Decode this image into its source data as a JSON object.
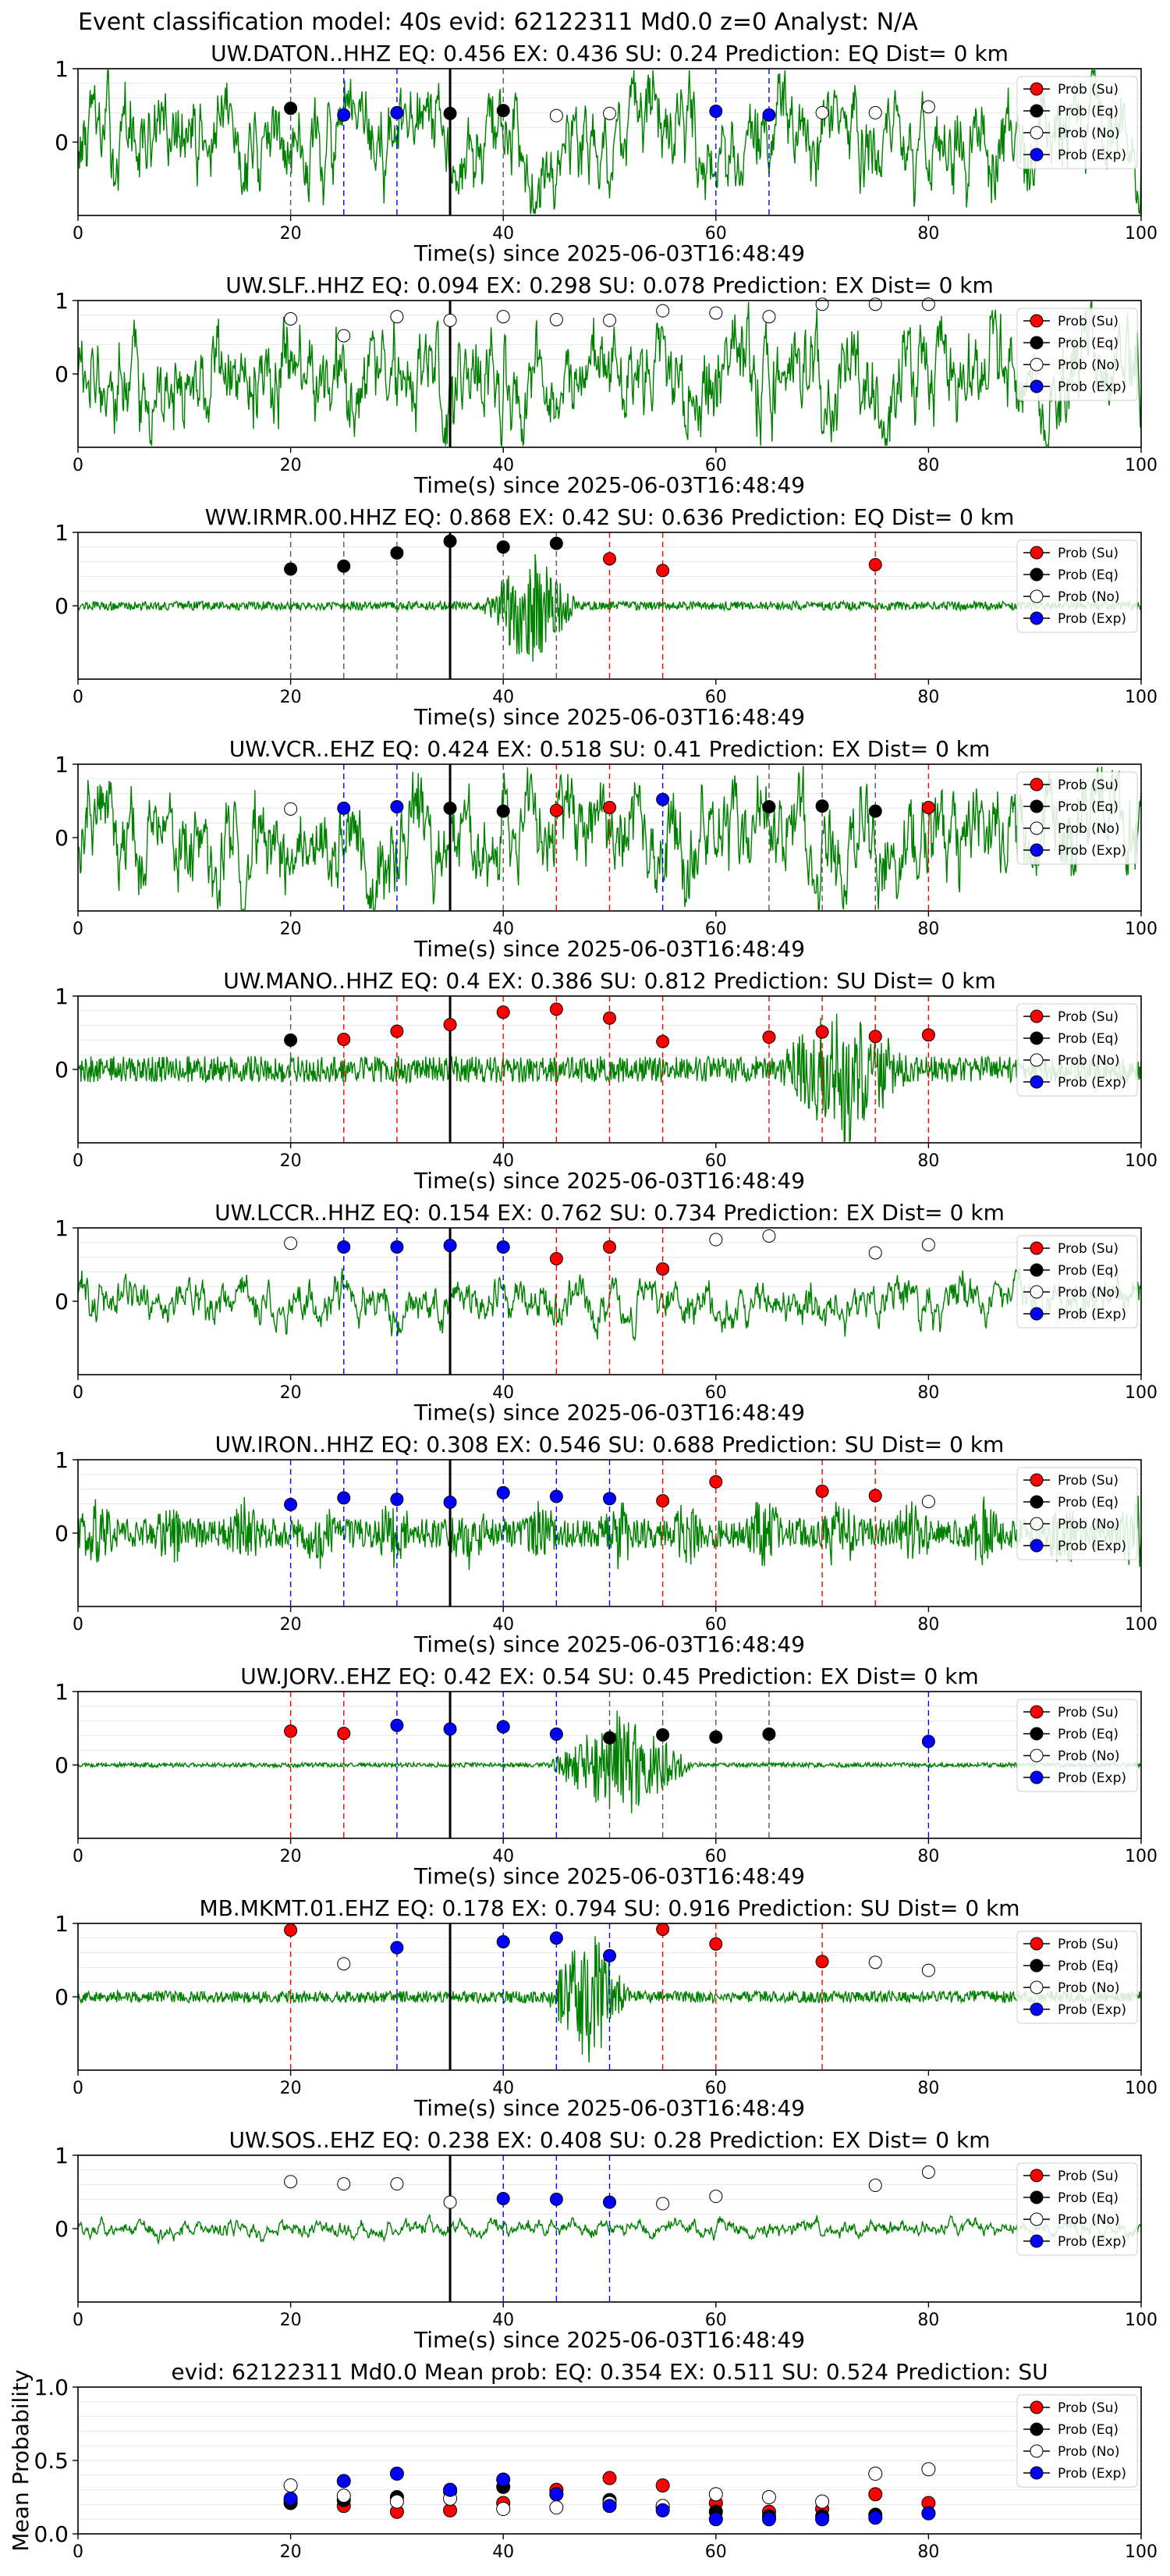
{
  "title": "Event classification model: 40s evid: 62122311 Md0.0 z=0 Analyst: N/A",
  "legend_labels": [
    "Prob (Su)",
    "Prob (Eq)",
    "Prob (No)",
    "Prob (Exp)"
  ],
  "colors": {
    "trace": "#008000",
    "su": "#ff0000",
    "eq": "#000000",
    "no": "#ffffff",
    "exp": "#0000ff",
    "axis": "#000000",
    "grid": "#e6e6e6"
  },
  "chart_data": [
    {
      "type": "line",
      "title": "UW.DATON..HHZ   EQ: 0.456  EX: 0.436  SU: 0.24   Prediction: EQ    Dist= 0 km",
      "xlabel": "Time(s) since 2025-06-03T16:48:49",
      "xlim": [
        0,
        100
      ],
      "ylim": [
        -1,
        1
      ],
      "xticks": [
        "0",
        "20",
        "40",
        "60",
        "80",
        "100"
      ],
      "yticks": [
        "0",
        "1"
      ],
      "pick_time": 35,
      "trace_amp": 0.75,
      "trace_shape": "noisy",
      "points": [
        {
          "x": 20,
          "y": 0.46,
          "cls": "eq"
        },
        {
          "x": 25,
          "y": 0.37,
          "cls": "exp"
        },
        {
          "x": 30,
          "y": 0.4,
          "cls": "exp"
        },
        {
          "x": 35,
          "y": 0.39,
          "cls": "eq"
        },
        {
          "x": 40,
          "y": 0.43,
          "cls": "eq"
        },
        {
          "x": 45,
          "y": 0.36,
          "cls": "no"
        },
        {
          "x": 50,
          "y": 0.39,
          "cls": "no"
        },
        {
          "x": 60,
          "y": 0.42,
          "cls": "exp"
        },
        {
          "x": 65,
          "y": 0.37,
          "cls": "exp"
        },
        {
          "x": 70,
          "y": 0.4,
          "cls": "no"
        },
        {
          "x": 75,
          "y": 0.4,
          "cls": "no"
        },
        {
          "x": 80,
          "y": 0.48,
          "cls": "no"
        }
      ]
    },
    {
      "type": "line",
      "title": "UW.SLF..HHZ   EQ: 0.094  EX: 0.298  SU: 0.078   Prediction: EX    Dist= 0 km",
      "xlabel": "Time(s) since 2025-06-03T16:48:49",
      "xlim": [
        0,
        100
      ],
      "ylim": [
        -1,
        1
      ],
      "xticks": [
        "0",
        "20",
        "40",
        "60",
        "80",
        "100"
      ],
      "yticks": [
        "0",
        "1"
      ],
      "pick_time": 35,
      "trace_amp": 0.8,
      "trace_shape": "noisy",
      "points": [
        {
          "x": 20,
          "y": 0.75,
          "cls": "no"
        },
        {
          "x": 25,
          "y": 0.52,
          "cls": "no"
        },
        {
          "x": 30,
          "y": 0.78,
          "cls": "no"
        },
        {
          "x": 35,
          "y": 0.73,
          "cls": "no"
        },
        {
          "x": 40,
          "y": 0.78,
          "cls": "no"
        },
        {
          "x": 45,
          "y": 0.74,
          "cls": "no"
        },
        {
          "x": 50,
          "y": 0.73,
          "cls": "no"
        },
        {
          "x": 55,
          "y": 0.86,
          "cls": "no"
        },
        {
          "x": 60,
          "y": 0.83,
          "cls": "no"
        },
        {
          "x": 65,
          "y": 0.78,
          "cls": "no"
        },
        {
          "x": 70,
          "y": 0.95,
          "cls": "no"
        },
        {
          "x": 75,
          "y": 0.95,
          "cls": "no"
        },
        {
          "x": 80,
          "y": 0.95,
          "cls": "no"
        }
      ]
    },
    {
      "type": "line",
      "title": "WW.IRMR.00.HHZ   EQ: 0.868  EX: 0.42  SU: 0.636   Prediction: EQ    Dist= 0 km",
      "xlabel": "Time(s) since 2025-06-03T16:48:49",
      "xlim": [
        0,
        100
      ],
      "ylim": [
        -1,
        1
      ],
      "xticks": [
        "0",
        "20",
        "40",
        "60",
        "80",
        "100"
      ],
      "yticks": [
        "0",
        "1"
      ],
      "pick_time": 35,
      "trace_amp": 0.06,
      "trace_shape": "burst",
      "burst": [
        38,
        47,
        0.85
      ],
      "points": [
        {
          "x": 20,
          "y": 0.5,
          "cls": "eq"
        },
        {
          "x": 25,
          "y": 0.54,
          "cls": "eq"
        },
        {
          "x": 30,
          "y": 0.72,
          "cls": "eq"
        },
        {
          "x": 35,
          "y": 0.88,
          "cls": "eq"
        },
        {
          "x": 40,
          "y": 0.8,
          "cls": "eq"
        },
        {
          "x": 45,
          "y": 0.85,
          "cls": "eq"
        },
        {
          "x": 50,
          "y": 0.64,
          "cls": "su"
        },
        {
          "x": 55,
          "y": 0.48,
          "cls": "su"
        },
        {
          "x": 75,
          "y": 0.56,
          "cls": "su"
        }
      ]
    },
    {
      "type": "line",
      "title": "UW.VCR..EHZ   EQ: 0.424  EX: 0.518  SU: 0.41   Prediction: EX    Dist= 0 km",
      "xlabel": "Time(s) since 2025-06-03T16:48:49",
      "xlim": [
        0,
        100
      ],
      "ylim": [
        -1,
        1
      ],
      "xticks": [
        "0",
        "20",
        "40",
        "60",
        "80",
        "100"
      ],
      "yticks": [
        "0",
        "1"
      ],
      "pick_time": 35,
      "trace_amp": 0.8,
      "trace_shape": "noisy",
      "points": [
        {
          "x": 20,
          "y": 0.39,
          "cls": "no"
        },
        {
          "x": 25,
          "y": 0.4,
          "cls": "exp"
        },
        {
          "x": 30,
          "y": 0.42,
          "cls": "exp"
        },
        {
          "x": 35,
          "y": 0.4,
          "cls": "eq"
        },
        {
          "x": 40,
          "y": 0.36,
          "cls": "eq"
        },
        {
          "x": 45,
          "y": 0.37,
          "cls": "su"
        },
        {
          "x": 50,
          "y": 0.41,
          "cls": "su"
        },
        {
          "x": 55,
          "y": 0.52,
          "cls": "exp"
        },
        {
          "x": 65,
          "y": 0.42,
          "cls": "eq"
        },
        {
          "x": 70,
          "y": 0.43,
          "cls": "eq"
        },
        {
          "x": 75,
          "y": 0.36,
          "cls": "eq"
        },
        {
          "x": 80,
          "y": 0.41,
          "cls": "su"
        }
      ]
    },
    {
      "type": "line",
      "title": "UW.MANO..HHZ   EQ: 0.4  EX: 0.386  SU: 0.812   Prediction: SU    Dist= 0 km",
      "xlabel": "Time(s) since 2025-06-03T16:48:49",
      "xlim": [
        0,
        100
      ],
      "ylim": [
        -1,
        1
      ],
      "xticks": [
        "0",
        "20",
        "40",
        "60",
        "80",
        "100"
      ],
      "yticks": [
        "0",
        "1"
      ],
      "pick_time": 35,
      "trace_amp": 0.18,
      "trace_shape": "burst",
      "burst": [
        66,
        78,
        0.95
      ],
      "points": [
        {
          "x": 20,
          "y": 0.4,
          "cls": "eq"
        },
        {
          "x": 25,
          "y": 0.41,
          "cls": "su"
        },
        {
          "x": 30,
          "y": 0.52,
          "cls": "su"
        },
        {
          "x": 35,
          "y": 0.61,
          "cls": "su"
        },
        {
          "x": 40,
          "y": 0.78,
          "cls": "su"
        },
        {
          "x": 45,
          "y": 0.82,
          "cls": "su"
        },
        {
          "x": 50,
          "y": 0.7,
          "cls": "su"
        },
        {
          "x": 55,
          "y": 0.38,
          "cls": "su"
        },
        {
          "x": 65,
          "y": 0.44,
          "cls": "su"
        },
        {
          "x": 70,
          "y": 0.51,
          "cls": "su"
        },
        {
          "x": 75,
          "y": 0.45,
          "cls": "su"
        },
        {
          "x": 80,
          "y": 0.47,
          "cls": "su"
        }
      ]
    },
    {
      "type": "line",
      "title": "UW.LCCR..HHZ   EQ: 0.154  EX: 0.762  SU: 0.734   Prediction: EX    Dist= 0 km",
      "xlabel": "Time(s) since 2025-06-03T16:48:49",
      "xlim": [
        0,
        100
      ],
      "ylim": [
        -1,
        1
      ],
      "xticks": [
        "0",
        "20",
        "40",
        "60",
        "80",
        "100"
      ],
      "yticks": [
        "0",
        "1"
      ],
      "pick_time": 35,
      "trace_amp": 0.35,
      "trace_shape": "noisy",
      "points": [
        {
          "x": 20,
          "y": 0.79,
          "cls": "no"
        },
        {
          "x": 25,
          "y": 0.74,
          "cls": "exp"
        },
        {
          "x": 30,
          "y": 0.74,
          "cls": "exp"
        },
        {
          "x": 35,
          "y": 0.76,
          "cls": "exp"
        },
        {
          "x": 40,
          "y": 0.74,
          "cls": "exp"
        },
        {
          "x": 45,
          "y": 0.58,
          "cls": "su"
        },
        {
          "x": 50,
          "y": 0.74,
          "cls": "su"
        },
        {
          "x": 55,
          "y": 0.44,
          "cls": "su"
        },
        {
          "x": 60,
          "y": 0.84,
          "cls": "no"
        },
        {
          "x": 65,
          "y": 0.89,
          "cls": "no"
        },
        {
          "x": 75,
          "y": 0.66,
          "cls": "no"
        },
        {
          "x": 80,
          "y": 0.77,
          "cls": "no"
        }
      ]
    },
    {
      "type": "line",
      "title": "UW.IRON..HHZ   EQ: 0.308  EX: 0.546  SU: 0.688   Prediction: SU    Dist= 0 km",
      "xlabel": "Time(s) since 2025-06-03T16:48:49",
      "xlim": [
        0,
        100
      ],
      "ylim": [
        -1,
        1
      ],
      "xticks": [
        "0",
        "20",
        "40",
        "60",
        "80",
        "100"
      ],
      "yticks": [
        "0",
        "1"
      ],
      "pick_time": 35,
      "trace_amp": 0.2,
      "trace_shape": "bursty",
      "points": [
        {
          "x": 20,
          "y": 0.39,
          "cls": "exp"
        },
        {
          "x": 25,
          "y": 0.48,
          "cls": "exp"
        },
        {
          "x": 30,
          "y": 0.46,
          "cls": "exp"
        },
        {
          "x": 35,
          "y": 0.42,
          "cls": "exp"
        },
        {
          "x": 40,
          "y": 0.55,
          "cls": "exp"
        },
        {
          "x": 45,
          "y": 0.5,
          "cls": "exp"
        },
        {
          "x": 50,
          "y": 0.47,
          "cls": "exp"
        },
        {
          "x": 55,
          "y": 0.44,
          "cls": "su"
        },
        {
          "x": 60,
          "y": 0.7,
          "cls": "su"
        },
        {
          "x": 70,
          "y": 0.57,
          "cls": "su"
        },
        {
          "x": 75,
          "y": 0.51,
          "cls": "su"
        },
        {
          "x": 80,
          "y": 0.43,
          "cls": "no"
        }
      ]
    },
    {
      "type": "line",
      "title": "UW.JORV..EHZ   EQ: 0.42  EX: 0.54  SU: 0.45   Prediction: EX    Dist= 0 km",
      "xlabel": "Time(s) since 2025-06-03T16:48:49",
      "xlim": [
        0,
        100
      ],
      "ylim": [
        -1,
        1
      ],
      "xticks": [
        "0",
        "20",
        "40",
        "60",
        "80",
        "100"
      ],
      "yticks": [
        "0",
        "1"
      ],
      "pick_time": 35,
      "trace_amp": 0.03,
      "trace_shape": "burst",
      "burst": [
        44,
        58,
        0.75
      ],
      "points": [
        {
          "x": 20,
          "y": 0.46,
          "cls": "su"
        },
        {
          "x": 25,
          "y": 0.43,
          "cls": "su"
        },
        {
          "x": 30,
          "y": 0.54,
          "cls": "exp"
        },
        {
          "x": 35,
          "y": 0.49,
          "cls": "exp"
        },
        {
          "x": 40,
          "y": 0.52,
          "cls": "exp"
        },
        {
          "x": 45,
          "y": 0.42,
          "cls": "exp"
        },
        {
          "x": 50,
          "y": 0.37,
          "cls": "eq"
        },
        {
          "x": 55,
          "y": 0.41,
          "cls": "eq"
        },
        {
          "x": 60,
          "y": 0.38,
          "cls": "eq"
        },
        {
          "x": 65,
          "y": 0.42,
          "cls": "eq"
        },
        {
          "x": 80,
          "y": 0.32,
          "cls": "exp"
        }
      ]
    },
    {
      "type": "line",
      "title": "MB.MKMT.01.EHZ   EQ: 0.178  EX: 0.794  SU: 0.916   Prediction: SU    Dist= 0 km",
      "xlabel": "Time(s) since 2025-06-03T16:48:49",
      "xlim": [
        0,
        100
      ],
      "ylim": [
        -1,
        1
      ],
      "xticks": [
        "0",
        "20",
        "40",
        "60",
        "80",
        "100"
      ],
      "yticks": [
        "0",
        "1"
      ],
      "pick_time": 35,
      "trace_amp": 0.08,
      "trace_shape": "burst",
      "burst": [
        44,
        52,
        0.9
      ],
      "points": [
        {
          "x": 20,
          "y": 0.91,
          "cls": "su"
        },
        {
          "x": 25,
          "y": 0.45,
          "cls": "no"
        },
        {
          "x": 30,
          "y": 0.67,
          "cls": "exp"
        },
        {
          "x": 40,
          "y": 0.75,
          "cls": "exp"
        },
        {
          "x": 45,
          "y": 0.8,
          "cls": "exp"
        },
        {
          "x": 50,
          "y": 0.56,
          "cls": "exp"
        },
        {
          "x": 55,
          "y": 0.92,
          "cls": "su"
        },
        {
          "x": 60,
          "y": 0.72,
          "cls": "su"
        },
        {
          "x": 70,
          "y": 0.48,
          "cls": "su"
        },
        {
          "x": 75,
          "y": 0.47,
          "cls": "no"
        },
        {
          "x": 80,
          "y": 0.36,
          "cls": "no"
        }
      ]
    },
    {
      "type": "line",
      "title": "UW.SOS..EHZ   EQ: 0.238  EX: 0.408  SU: 0.28   Prediction: EX    Dist= 0 km",
      "xlabel": "Time(s) since 2025-06-03T16:48:49",
      "xlim": [
        0,
        100
      ],
      "ylim": [
        -1,
        1
      ],
      "xticks": [
        "0",
        "20",
        "40",
        "60",
        "80",
        "100"
      ],
      "yticks": [
        "0",
        "1"
      ],
      "pick_time": 35,
      "trace_amp": 0.13,
      "trace_shape": "noisy",
      "points": [
        {
          "x": 20,
          "y": 0.64,
          "cls": "no"
        },
        {
          "x": 25,
          "y": 0.61,
          "cls": "no"
        },
        {
          "x": 30,
          "y": 0.61,
          "cls": "no"
        },
        {
          "x": 35,
          "y": 0.36,
          "cls": "no"
        },
        {
          "x": 40,
          "y": 0.41,
          "cls": "exp"
        },
        {
          "x": 45,
          "y": 0.4,
          "cls": "exp"
        },
        {
          "x": 50,
          "y": 0.36,
          "cls": "exp"
        },
        {
          "x": 55,
          "y": 0.34,
          "cls": "no"
        },
        {
          "x": 60,
          "y": 0.44,
          "cls": "no"
        },
        {
          "x": 75,
          "y": 0.59,
          "cls": "no"
        },
        {
          "x": 80,
          "y": 0.77,
          "cls": "no"
        }
      ]
    },
    {
      "type": "scatter",
      "title": "evid: 62122311  Md0.0   Mean prob:   EQ: 0.354  EX: 0.511  SU: 0.524   Prediction: SU",
      "ylabel": "Mean Probability",
      "xlim": [
        0,
        100
      ],
      "ylim": [
        0,
        1
      ],
      "xticks": [
        "0",
        "20",
        "40",
        "60",
        "80",
        "100"
      ],
      "yticks": [
        "0.0",
        "0.5",
        "1.0"
      ],
      "series": [
        {
          "name": "Prob (Su)",
          "cls": "su",
          "x": [
            20,
            25,
            30,
            35,
            40,
            45,
            50,
            55,
            60,
            65,
            70,
            75,
            80
          ],
          "y": [
            0.23,
            0.19,
            0.15,
            0.16,
            0.21,
            0.3,
            0.38,
            0.33,
            0.21,
            0.15,
            0.17,
            0.27,
            0.21
          ]
        },
        {
          "name": "Prob (Eq)",
          "cls": "eq",
          "x": [
            20,
            25,
            30,
            35,
            40,
            45,
            50,
            55,
            60,
            65,
            70,
            75,
            80
          ],
          "y": [
            0.21,
            0.23,
            0.25,
            0.29,
            0.32,
            0.27,
            0.23,
            0.18,
            0.15,
            0.12,
            0.12,
            0.13,
            0.14
          ]
        },
        {
          "name": "Prob (No)",
          "cls": "no",
          "x": [
            20,
            25,
            30,
            35,
            40,
            45,
            50,
            55,
            60,
            65,
            70,
            75,
            80
          ],
          "y": [
            0.33,
            0.26,
            0.22,
            0.24,
            0.17,
            0.18,
            0.21,
            0.19,
            0.27,
            0.25,
            0.22,
            0.41,
            0.44
          ]
        },
        {
          "name": "Prob (Exp)",
          "cls": "exp",
          "x": [
            20,
            25,
            30,
            35,
            40,
            45,
            50,
            55,
            60,
            65,
            70,
            75,
            80
          ],
          "y": [
            0.24,
            0.36,
            0.41,
            0.3,
            0.37,
            0.27,
            0.19,
            0.16,
            0.1,
            0.1,
            0.1,
            0.11,
            0.14
          ]
        }
      ]
    }
  ]
}
